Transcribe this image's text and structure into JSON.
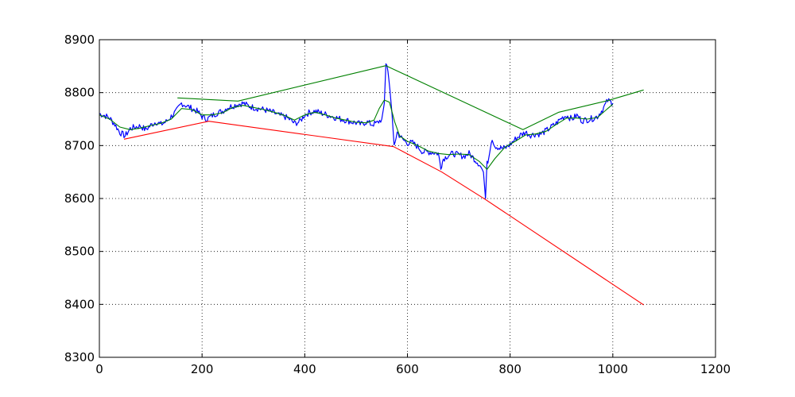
{
  "colors": {
    "background": "#ffffff",
    "axes_frame": "#000000",
    "grid": "#000000"
  },
  "chart_data": {
    "type": "line",
    "title": "",
    "xlabel": "",
    "ylabel": "",
    "xlim": [
      0,
      1200
    ],
    "ylim": [
      8300,
      8900
    ],
    "x_ticks": [
      0,
      200,
      400,
      600,
      800,
      1000,
      1200
    ],
    "y_ticks": [
      8300,
      8400,
      8500,
      8600,
      8700,
      8800,
      8900
    ],
    "x_tick_labels": [
      "0",
      "200",
      "400",
      "600",
      "800",
      "1000",
      "1200"
    ],
    "y_tick_labels": [
      "8300",
      "8400",
      "8500",
      "8600",
      "8700",
      "8800",
      "8900"
    ],
    "grid": true,
    "grid_style": "dotted",
    "legend": "none",
    "series": [
      {
        "color": "#0000ff",
        "style": "noisy",
        "points": [
          [
            0,
            8760
          ],
          [
            10,
            8757
          ],
          [
            20,
            8752
          ],
          [
            30,
            8740
          ],
          [
            40,
            8725
          ],
          [
            50,
            8718
          ],
          [
            60,
            8732
          ],
          [
            70,
            8735
          ],
          [
            80,
            8737
          ],
          [
            90,
            8730
          ],
          [
            100,
            8738
          ],
          [
            110,
            8745
          ],
          [
            120,
            8740
          ],
          [
            130,
            8745
          ],
          [
            140,
            8755
          ],
          [
            150,
            8765
          ],
          [
            160,
            8780
          ],
          [
            170,
            8775
          ],
          [
            180,
            8770
          ],
          [
            190,
            8765
          ],
          [
            200,
            8755
          ],
          [
            210,
            8750
          ],
          [
            220,
            8757
          ],
          [
            230,
            8762
          ],
          [
            240,
            8765
          ],
          [
            250,
            8772
          ],
          [
            260,
            8775
          ],
          [
            270,
            8778
          ],
          [
            280,
            8780
          ],
          [
            290,
            8775
          ],
          [
            300,
            8772
          ],
          [
            310,
            8770
          ],
          [
            320,
            8768
          ],
          [
            330,
            8765
          ],
          [
            340,
            8762
          ],
          [
            350,
            8757
          ],
          [
            360,
            8755
          ],
          [
            370,
            8750
          ],
          [
            380,
            8742
          ],
          [
            390,
            8745
          ],
          [
            400,
            8758
          ],
          [
            410,
            8763
          ],
          [
            420,
            8765
          ],
          [
            430,
            8762
          ],
          [
            440,
            8759
          ],
          [
            450,
            8756
          ],
          [
            460,
            8753
          ],
          [
            470,
            8750
          ],
          [
            480,
            8748
          ],
          [
            490,
            8745
          ],
          [
            500,
            8743
          ],
          [
            510,
            8740
          ],
          [
            520,
            8745
          ],
          [
            530,
            8740
          ],
          [
            540,
            8742
          ],
          [
            550,
            8750
          ],
          [
            555,
            8780
          ],
          [
            558,
            8852
          ],
          [
            562,
            8840
          ],
          [
            566,
            8805
          ],
          [
            570,
            8760
          ],
          [
            574,
            8700
          ],
          [
            580,
            8725
          ],
          [
            590,
            8712
          ],
          [
            600,
            8705
          ],
          [
            610,
            8705
          ],
          [
            620,
            8698
          ],
          [
            630,
            8688
          ],
          [
            640,
            8688
          ],
          [
            650,
            8687
          ],
          [
            660,
            8685
          ],
          [
            665,
            8660
          ],
          [
            670,
            8675
          ],
          [
            680,
            8682
          ],
          [
            690,
            8685
          ],
          [
            700,
            8682
          ],
          [
            710,
            8680
          ],
          [
            720,
            8685
          ],
          [
            730,
            8675
          ],
          [
            740,
            8665
          ],
          [
            748,
            8650
          ],
          [
            752,
            8600
          ],
          [
            755,
            8665
          ],
          [
            760,
            8685
          ],
          [
            765,
            8715
          ],
          [
            770,
            8700
          ],
          [
            780,
            8695
          ],
          [
            790,
            8695
          ],
          [
            800,
            8702
          ],
          [
            810,
            8712
          ],
          [
            820,
            8720
          ],
          [
            830,
            8725
          ],
          [
            840,
            8720
          ],
          [
            850,
            8722
          ],
          [
            860,
            8722
          ],
          [
            870,
            8728
          ],
          [
            880,
            8735
          ],
          [
            890,
            8742
          ],
          [
            900,
            8752
          ],
          [
            910,
            8757
          ],
          [
            920,
            8750
          ],
          [
            930,
            8757
          ],
          [
            940,
            8747
          ],
          [
            950,
            8749
          ],
          [
            960,
            8751
          ],
          [
            970,
            8755
          ],
          [
            980,
            8768
          ],
          [
            990,
            8785
          ],
          [
            1000,
            8780
          ]
        ]
      },
      {
        "color": "#008000",
        "style": "smooth",
        "points": [
          [
            0,
            8758
          ],
          [
            20,
            8750
          ],
          [
            40,
            8735
          ],
          [
            60,
            8730
          ],
          [
            80,
            8733
          ],
          [
            100,
            8738
          ],
          [
            120,
            8742
          ],
          [
            140,
            8750
          ],
          [
            160,
            8770
          ],
          [
            180,
            8768
          ],
          [
            200,
            8758
          ],
          [
            220,
            8758
          ],
          [
            240,
            8762
          ],
          [
            260,
            8772
          ],
          [
            280,
            8776
          ],
          [
            300,
            8772
          ],
          [
            320,
            8768
          ],
          [
            340,
            8763
          ],
          [
            360,
            8757
          ],
          [
            380,
            8748
          ],
          [
            400,
            8758
          ],
          [
            420,
            8763
          ],
          [
            440,
            8758
          ],
          [
            460,
            8752
          ],
          [
            480,
            8748
          ],
          [
            500,
            8744
          ],
          [
            520,
            8743
          ],
          [
            535,
            8748
          ],
          [
            545,
            8770
          ],
          [
            555,
            8786
          ],
          [
            565,
            8782
          ],
          [
            575,
            8745
          ],
          [
            585,
            8718
          ],
          [
            600,
            8708
          ],
          [
            620,
            8700
          ],
          [
            640,
            8690
          ],
          [
            660,
            8685
          ],
          [
            680,
            8683
          ],
          [
            700,
            8684
          ],
          [
            720,
            8683
          ],
          [
            740,
            8670
          ],
          [
            755,
            8655
          ],
          [
            770,
            8675
          ],
          [
            790,
            8697
          ],
          [
            810,
            8708
          ],
          [
            830,
            8720
          ],
          [
            850,
            8722
          ],
          [
            870,
            8727
          ],
          [
            890,
            8740
          ],
          [
            910,
            8752
          ],
          [
            930,
            8752
          ],
          [
            950,
            8750
          ],
          [
            970,
            8753
          ],
          [
            990,
            8770
          ],
          [
            1000,
            8778
          ]
        ]
      },
      {
        "color": "#008000",
        "style": "straight",
        "points": [
          [
            152,
            8790
          ],
          [
            270,
            8784
          ],
          [
            558,
            8851
          ],
          [
            825,
            8730
          ],
          [
            895,
            8763
          ],
          [
            990,
            8785
          ],
          [
            1060,
            8805
          ]
        ]
      },
      {
        "color": "#ff0000",
        "style": "straight",
        "points": [
          [
            48,
            8712
          ],
          [
            213,
            8746
          ],
          [
            573,
            8698
          ],
          [
            667,
            8650
          ],
          [
            752,
            8598
          ],
          [
            1060,
            8399
          ]
        ]
      }
    ]
  }
}
